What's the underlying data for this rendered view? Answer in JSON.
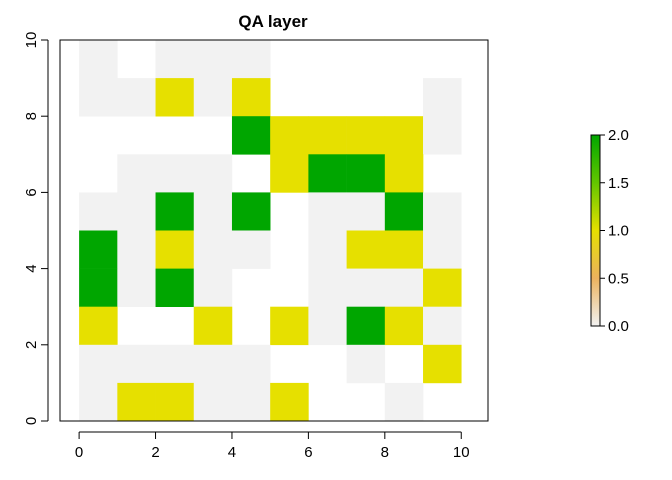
{
  "chart_data": {
    "type": "heatmap",
    "title": "QA layer",
    "xlabel": "",
    "ylabel": "",
    "xlim": [
      -0.5,
      10.7
    ],
    "ylim": [
      0,
      10
    ],
    "x_ticks": [
      "0",
      "2",
      "4",
      "6",
      "8",
      "10"
    ],
    "y_ticks": [
      "0",
      "2",
      "4",
      "6",
      "8",
      "10"
    ],
    "cell_x_start": 0,
    "cell_y_start": 0,
    "cell_size": 1,
    "rows_top_to_bottom": [
      [
        0,
        null,
        0,
        0,
        0,
        null,
        null,
        null,
        null,
        null
      ],
      [
        0,
        0,
        1,
        0,
        1,
        null,
        null,
        null,
        null,
        0
      ],
      [
        null,
        null,
        null,
        null,
        2,
        1,
        1,
        1,
        1,
        0
      ],
      [
        null,
        0,
        0,
        0,
        null,
        1,
        2,
        2,
        1,
        null
      ],
      [
        0,
        0,
        2,
        0,
        2,
        null,
        0,
        0,
        2,
        0
      ],
      [
        2,
        0,
        1,
        0,
        0,
        null,
        0,
        1,
        1,
        0
      ],
      [
        2,
        0,
        2,
        0,
        null,
        null,
        0,
        0,
        0,
        1
      ],
      [
        1,
        null,
        null,
        1,
        null,
        1,
        0,
        2,
        1,
        0
      ],
      [
        0,
        0,
        0,
        0,
        0,
        null,
        null,
        0,
        null,
        1
      ],
      [
        0,
        1,
        1,
        0,
        0,
        1,
        null,
        null,
        0,
        null
      ]
    ],
    "value_colors": {
      "0": "#f2f2f2",
      "1": "#e6e000",
      "2": "#00a600"
    },
    "legend": {
      "position": "right",
      "range": [
        0,
        2
      ],
      "ticks": [
        "0.0",
        "0.5",
        "1.0",
        "1.5",
        "2.0"
      ],
      "gradient_stops": [
        {
          "value": 0.0,
          "color": "#f2f2f2"
        },
        {
          "value": 0.5,
          "color": "#ebb25e"
        },
        {
          "value": 1.0,
          "color": "#e6e000"
        },
        {
          "value": 1.5,
          "color": "#63c600"
        },
        {
          "value": 2.0,
          "color": "#00a600"
        }
      ]
    }
  }
}
